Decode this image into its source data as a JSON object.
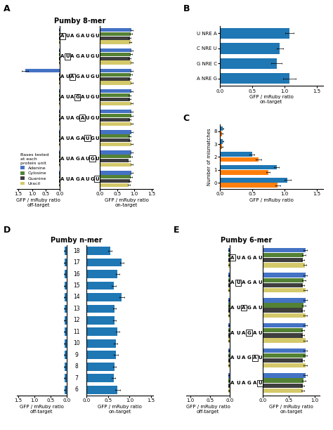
{
  "chart_data": [
    {
      "type": "bar",
      "orientation": "horizontal",
      "panel_label": "A",
      "title": "Pumby 8-mer",
      "categories": [
        "AUAGAUGU",
        "AUAGAUGU",
        "AUAGAUGU",
        "AUAGAUGU",
        "AUAGAUGU",
        "AUAGAUGU",
        "AUAGAUGU",
        "AUAGAUGU"
      ],
      "boxed_positions": [
        0,
        1,
        2,
        3,
        4,
        5,
        6,
        7
      ],
      "xlabel": "GFP / mRuby ratio\noff-target",
      "xlim": [
        1.55,
        0
      ],
      "xticks": [
        {
          "value": 0,
          "label": "0.0"
        },
        0.5,
        {
          "value": 1,
          "label": "1.0"
        },
        1.5
      ],
      "legend": "lower left",
      "legend_title": "Bases tested\nat each\nprotein unit",
      "series": [
        {
          "name": "Adenine",
          "color": "#4472C4",
          "values": [
            0.03,
            0.03,
            1.25,
            0.03,
            0.03,
            0.03,
            0.03,
            0.03
          ],
          "errors": [
            0.01,
            0.01,
            0.12,
            0.01,
            0.01,
            0.01,
            0.01,
            0.01
          ]
        },
        {
          "name": "Cylosine",
          "color": "#548235",
          "values": [
            0.03,
            0.03,
            0.03,
            0.03,
            0.03,
            0.03,
            0.03,
            0.03
          ],
          "errors": [
            0.01,
            0.01,
            0.01,
            0.01,
            0.01,
            0.01,
            0.01,
            0.01
          ]
        },
        {
          "name": "Guanine",
          "color": "#3F3F3F",
          "values": [
            0.03,
            0.03,
            0.03,
            0.03,
            0.03,
            0.03,
            0.03,
            0.03
          ],
          "errors": [
            0.01,
            0.01,
            0.01,
            0.01,
            0.01,
            0.01,
            0.01,
            0.01
          ]
        },
        {
          "name": "Uracil",
          "color": "#D4C96A",
          "values": [
            0.03,
            0.03,
            0.03,
            0.03,
            0.03,
            0.03,
            0.03,
            0.03
          ],
          "errors": [
            0.01,
            0.01,
            0.01,
            0.01,
            0.01,
            0.01,
            0.01,
            0.01
          ]
        }
      ]
    },
    {
      "type": "bar",
      "orientation": "horizontal",
      "xlabel": "GFP / mRuby ratio\non-target",
      "xlim": [
        0,
        1.55
      ],
      "xticks": [
        {
          "value": 0,
          "label": "0.0"
        },
        0.5,
        {
          "value": 1,
          "label": "1.0"
        },
        1.5
      ],
      "series": [
        {
          "name": "Adenine",
          "color": "#4472C4",
          "values": [
            0.92,
            0.92,
            0.92,
            0.92,
            0.92,
            0.92,
            0.92,
            0.92
          ],
          "errors": [
            0.03,
            0.03,
            0.03,
            0.03,
            0.03,
            0.03,
            0.03,
            0.03
          ]
        },
        {
          "name": "Cylosine",
          "color": "#548235",
          "values": [
            0.9,
            0.9,
            0.9,
            0.87,
            0.92,
            0.87,
            0.9,
            0.9
          ],
          "errors": [
            0.03,
            0.03,
            0.03,
            0.03,
            0.03,
            0.03,
            0.03,
            0.03
          ]
        },
        {
          "name": "Guanine",
          "color": "#3F3F3F",
          "values": [
            0.87,
            0.87,
            0.87,
            0.87,
            0.87,
            0.87,
            0.84,
            0.87
          ],
          "errors": [
            0.03,
            0.03,
            0.03,
            0.03,
            0.03,
            0.03,
            0.03,
            0.03
          ]
        },
        {
          "name": "Uracil",
          "color": "#D4C96A",
          "values": [
            0.89,
            0.92,
            0.92,
            0.92,
            0.92,
            0.92,
            0.92,
            0.84
          ],
          "errors": [
            0.03,
            0.03,
            0.03,
            0.03,
            0.03,
            0.03,
            0.03,
            0.03
          ]
        }
      ]
    },
    {
      "type": "bar",
      "orientation": "horizontal",
      "panel_label": "B",
      "categories": [
        "U NRE A",
        "C NRE U",
        "G NRE C",
        "A NRE G"
      ],
      "xlabel": "GFP / mRuby ratio\non-target",
      "xlim": [
        0,
        1.6
      ],
      "xticks": [
        {
          "value": 0,
          "label": "0.0"
        },
        0.5,
        {
          "value": 1,
          "label": "1.0"
        },
        1.5
      ],
      "series": [
        {
          "values": [
            1.08,
            0.93,
            0.88,
            1.08
          ],
          "errors": [
            0.07,
            0.05,
            0.08,
            0.1
          ]
        }
      ]
    },
    {
      "type": "bar",
      "orientation": "horizontal",
      "panel_label": "C",
      "categories": [
        "8",
        "3",
        "2",
        "1",
        "0"
      ],
      "xlabel": "GFP / mRuby ratio",
      "ylabel": "Number of mismatches",
      "xlim": [
        0,
        1.6
      ],
      "xticks": [
        {
          "value": 0,
          "label": "0.0"
        },
        0.5,
        {
          "value": 1,
          "label": "1.0"
        },
        1.5
      ],
      "series": [
        {
          "values": [
            0.05,
            0.05,
            0.5,
            0.88,
            1.05
          ],
          "errors": [
            0.01,
            0.01,
            0.04,
            0.04,
            0.05
          ]
        },
        {
          "values": [
            0.03,
            0.03,
            0.6,
            0.75,
            0.9
          ],
          "errors": [
            0.01,
            0.01,
            0.04,
            0.03,
            0.04
          ]
        }
      ]
    },
    {
      "type": "bar",
      "orientation": "horizontal",
      "panel_label": "D",
      "title": "Pumby n-mer",
      "categories": [
        "18",
        "17",
        "16",
        "15",
        "14",
        "13",
        "12",
        "11",
        "10",
        "9",
        "8",
        "7",
        "6"
      ],
      "xlabel": "GFP / mRuby ratio\noff-target",
      "xlim": [
        1.55,
        0
      ],
      "xticks": [
        {
          "value": 0,
          "label": "0.0"
        },
        0.5,
        {
          "value": 1,
          "label": "1.0"
        },
        1.5
      ],
      "series": [
        {
          "values": [
            0.06,
            0.06,
            0.06,
            0.06,
            0.06,
            0.06,
            0.06,
            0.06,
            0.06,
            0.06,
            0.06,
            0.06,
            0.06
          ],
          "errors": [
            0.02,
            0.02,
            0.02,
            0.02,
            0.02,
            0.02,
            0.02,
            0.02,
            0.02,
            0.02,
            0.02,
            0.02,
            0.02
          ]
        }
      ]
    },
    {
      "type": "bar",
      "orientation": "horizontal",
      "xlabel": "GFP / mRuby ratio\non-target",
      "xlim": [
        0,
        1.55
      ],
      "xticks": [
        {
          "value": 0,
          "label": "0.0"
        },
        0.5,
        {
          "value": 1,
          "label": "1.0"
        },
        1.5
      ],
      "series": [
        {
          "values": [
            0.55,
            0.82,
            0.72,
            0.63,
            0.82,
            0.65,
            0.65,
            0.72,
            0.68,
            0.68,
            0.65,
            0.63,
            0.72
          ],
          "errors": [
            0.04,
            0.04,
            0.04,
            0.05,
            0.06,
            0.04,
            0.04,
            0.04,
            0.04,
            0.05,
            0.04,
            0.04,
            0.06
          ]
        }
      ]
    },
    {
      "type": "bar",
      "orientation": "horizontal",
      "panel_label": "E",
      "title": "Pumby 6-mer",
      "categories": [
        "AUAGAU",
        "AUAGAU",
        "AUAGAU",
        "AUAGAU",
        "AUAGAU",
        "AUAGAU"
      ],
      "boxed_positions": [
        0,
        1,
        2,
        3,
        4,
        5
      ],
      "xlabel": "GFP / mRuby ratio\noff-target",
      "xlim": [
        1.1,
        0
      ],
      "xticks": [
        {
          "value": 0,
          "label": "0.0"
        },
        0.5,
        {
          "value": 1,
          "label": "1.0"
        }
      ],
      "series": [
        {
          "name": "Adenine",
          "color": "#4472C4",
          "values": [
            0.03,
            0.03,
            0.03,
            0.03,
            0.03,
            0.03
          ],
          "errors": [
            0.01,
            0.01,
            0.01,
            0.01,
            0.01,
            0.01
          ]
        },
        {
          "name": "Cylosine",
          "color": "#548235",
          "values": [
            0.03,
            0.03,
            0.03,
            0.03,
            0.03,
            0.03
          ],
          "errors": [
            0.01,
            0.01,
            0.01,
            0.01,
            0.01,
            0.01
          ]
        },
        {
          "name": "Guanine",
          "color": "#3F3F3F",
          "values": [
            0.03,
            0.03,
            0.03,
            0.03,
            0.03,
            0.03
          ],
          "errors": [
            0.01,
            0.01,
            0.01,
            0.01,
            0.01,
            0.01
          ]
        },
        {
          "name": "Uracil",
          "color": "#D4C96A",
          "values": [
            0.03,
            0.03,
            0.03,
            0.03,
            0.03,
            0.03
          ],
          "errors": [
            0.01,
            0.01,
            0.01,
            0.01,
            0.01,
            0.01
          ]
        }
      ]
    },
    {
      "type": "bar",
      "orientation": "horizontal",
      "xlabel": "GFP / mRuby ratio\non-target",
      "xlim": [
        0,
        1.1
      ],
      "xticks": [
        {
          "value": 0,
          "label": "0.0"
        },
        0.5,
        {
          "value": 1,
          "label": "1.0"
        }
      ],
      "series": [
        {
          "name": "Adenine",
          "color": "#4472C4",
          "values": [
            0.82,
            0.82,
            0.82,
            0.82,
            0.82,
            0.82
          ],
          "errors": [
            0.03,
            0.03,
            0.03,
            0.03,
            0.03,
            0.03
          ]
        },
        {
          "name": "Cylosine",
          "color": "#548235",
          "values": [
            0.79,
            0.79,
            0.79,
            0.77,
            0.82,
            0.79
          ],
          "errors": [
            0.03,
            0.03,
            0.03,
            0.03,
            0.03,
            0.03
          ]
        },
        {
          "name": "Guanine",
          "color": "#3F3F3F",
          "values": [
            0.77,
            0.77,
            0.77,
            0.77,
            0.77,
            0.77
          ],
          "errors": [
            0.03,
            0.03,
            0.03,
            0.03,
            0.03,
            0.03
          ]
        },
        {
          "name": "Uracil",
          "color": "#D4C96A",
          "values": [
            0.81,
            0.82,
            0.82,
            0.82,
            0.82,
            0.77
          ],
          "errors": [
            0.03,
            0.03,
            0.03,
            0.03,
            0.03,
            0.03
          ]
        }
      ]
    }
  ]
}
